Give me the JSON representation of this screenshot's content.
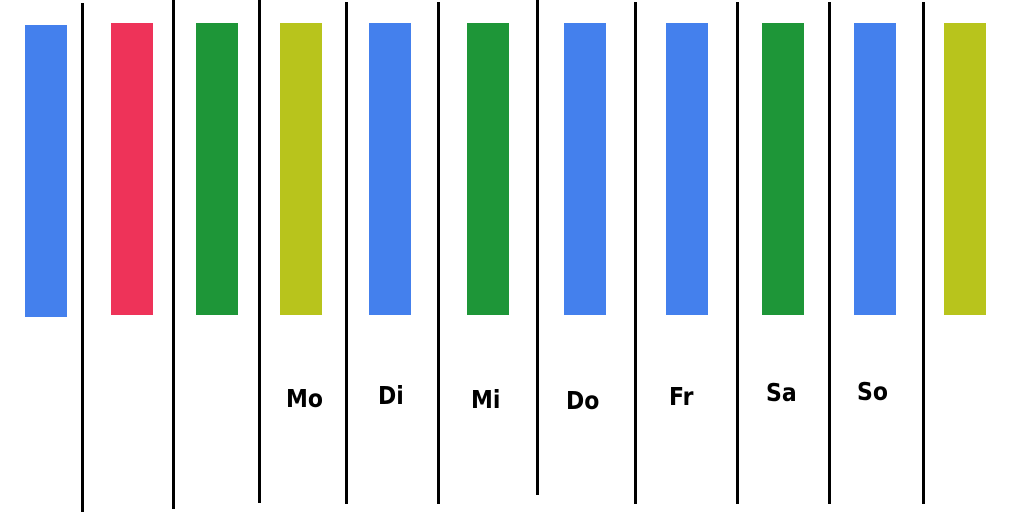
{
  "bars": [
    {
      "color": "#4480ED"
    },
    {
      "color": "#EE3359"
    },
    {
      "color": "#1E9638"
    },
    {
      "color": "#B8C41C"
    },
    {
      "color": "#4480ED"
    },
    {
      "color": "#1E9638"
    },
    {
      "color": "#4480ED"
    },
    {
      "color": "#4480ED"
    },
    {
      "color": "#1E9638"
    },
    {
      "color": "#4480ED"
    },
    {
      "color": "#B8C41C"
    }
  ],
  "day_labels": [
    "Mo",
    "Di",
    "Mi",
    "Do",
    "Fr",
    "Sa",
    "So"
  ]
}
